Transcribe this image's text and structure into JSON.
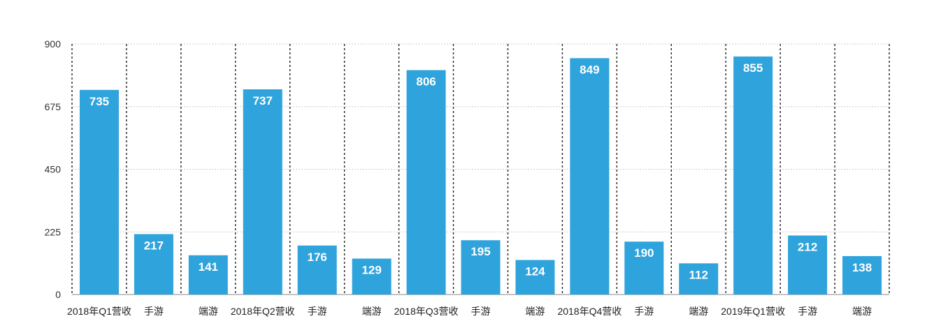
{
  "chart_data": {
    "type": "bar",
    "categories": [
      "2018年Q1营收",
      "手游",
      "端游",
      "2018年Q2营收",
      "手游",
      "端游",
      "2018年Q3营收",
      "手游",
      "端游",
      "2018年Q4营收",
      "手游",
      "端游",
      "2019年Q1营收",
      "手游",
      "端游"
    ],
    "values": [
      735,
      217,
      141,
      737,
      176,
      129,
      806,
      195,
      124,
      849,
      190,
      112,
      855,
      212,
      138
    ],
    "title": "",
    "xlabel": "",
    "ylabel": "",
    "ylim": [
      0,
      900
    ],
    "yticks": [
      "0",
      "225",
      "450",
      "675",
      "900"
    ],
    "grid": true,
    "bar_color": "#2ea3dc",
    "legend": "none"
  }
}
